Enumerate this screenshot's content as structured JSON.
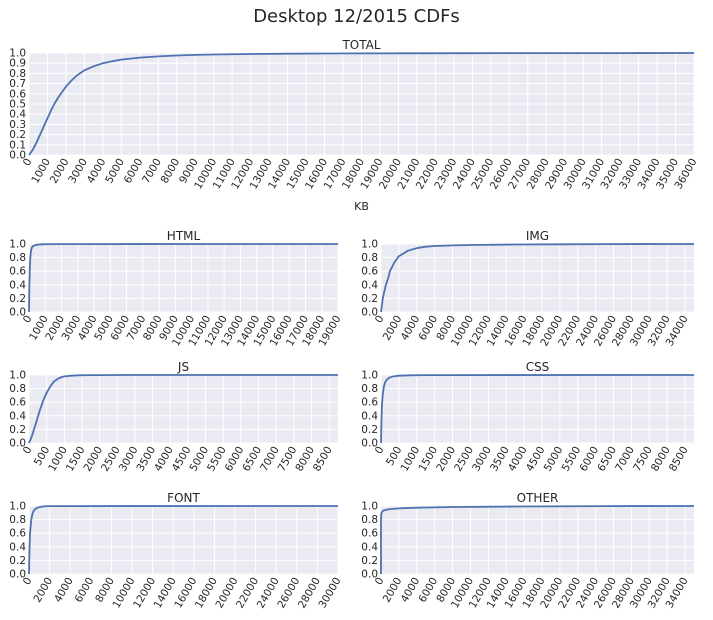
{
  "chart_data": {
    "title": "Desktop 12/2015 CDFs",
    "plots": [
      {
        "type": "line",
        "title": "TOTAL",
        "xlabel": "KB",
        "ylabel": "",
        "xlim": [
          0,
          36000
        ],
        "ylim": [
          0,
          1.0
        ],
        "xticks": [
          0,
          1000,
          2000,
          3000,
          4000,
          5000,
          6000,
          7000,
          8000,
          9000,
          10000,
          11000,
          12000,
          13000,
          14000,
          15000,
          16000,
          17000,
          18000,
          19000,
          20000,
          21000,
          22000,
          23000,
          24000,
          25000,
          26000,
          27000,
          28000,
          29000,
          30000,
          31000,
          32000,
          33000,
          34000,
          35000,
          36000
        ],
        "yticks": [
          0.0,
          0.1,
          0.2,
          0.3,
          0.4,
          0.5,
          0.6,
          0.7,
          0.8,
          0.9,
          1.0
        ],
        "grid": true,
        "x": [
          0,
          200,
          400,
          600,
          800,
          1000,
          1200,
          1400,
          1600,
          1800,
          2000,
          2300,
          2600,
          3000,
          3500,
          4000,
          4500,
          5000,
          6000,
          7000,
          8000,
          9000,
          10000,
          12000,
          14000,
          16000,
          18000,
          20000,
          24000,
          28000,
          32000,
          36000
        ],
        "y": [
          0.0,
          0.05,
          0.12,
          0.2,
          0.28,
          0.36,
          0.44,
          0.51,
          0.57,
          0.62,
          0.67,
          0.73,
          0.78,
          0.83,
          0.87,
          0.9,
          0.92,
          0.935,
          0.955,
          0.967,
          0.975,
          0.981,
          0.985,
          0.99,
          0.993,
          0.995,
          0.996,
          0.997,
          0.998,
          0.999,
          0.9995,
          1.0
        ]
      },
      {
        "type": "line",
        "title": "HTML",
        "xlabel": "",
        "ylabel": "",
        "xlim": [
          0,
          19000
        ],
        "ylim": [
          0,
          1.0
        ],
        "xticks": [
          0,
          1000,
          2000,
          3000,
          4000,
          5000,
          6000,
          7000,
          8000,
          9000,
          10000,
          11000,
          12000,
          13000,
          14000,
          15000,
          16000,
          17000,
          18000,
          19000
        ],
        "yticks": [
          0.0,
          0.2,
          0.4,
          0.6,
          0.8,
          1.0
        ],
        "grid": true,
        "x": [
          0,
          20,
          50,
          80,
          120,
          180,
          250,
          350,
          500,
          800,
          1500,
          3000,
          19000
        ],
        "y": [
          0.0,
          0.35,
          0.65,
          0.8,
          0.9,
          0.95,
          0.97,
          0.98,
          0.99,
          0.995,
          0.998,
          0.999,
          1.0
        ]
      },
      {
        "type": "line",
        "title": "IMG",
        "xlabel": "",
        "ylabel": "",
        "xlim": [
          0,
          35000
        ],
        "ylim": [
          0,
          1.0
        ],
        "xticks": [
          0,
          2000,
          4000,
          6000,
          8000,
          10000,
          12000,
          14000,
          16000,
          18000,
          20000,
          22000,
          24000,
          26000,
          28000,
          30000,
          32000,
          34000
        ],
        "yticks": [
          0.0,
          0.2,
          0.4,
          0.6,
          0.8,
          1.0
        ],
        "grid": true,
        "x": [
          0,
          200,
          500,
          800,
          1000,
          1500,
          2000,
          2500,
          3000,
          4000,
          5000,
          6000,
          8000,
          10000,
          15000,
          20000,
          25000,
          35000
        ],
        "y": [
          0.0,
          0.2,
          0.38,
          0.5,
          0.6,
          0.73,
          0.82,
          0.86,
          0.9,
          0.94,
          0.96,
          0.97,
          0.98,
          0.986,
          0.993,
          0.996,
          0.998,
          1.0
        ]
      },
      {
        "type": "line",
        "title": "JS",
        "xlabel": "",
        "ylabel": "",
        "xlim": [
          0,
          8750
        ],
        "ylim": [
          0,
          1.0
        ],
        "xticks": [
          0,
          500,
          1000,
          1500,
          2000,
          2500,
          3000,
          3500,
          4000,
          4500,
          5000,
          5500,
          6000,
          6500,
          7000,
          7500,
          8000,
          8500
        ],
        "yticks": [
          0.0,
          0.2,
          0.4,
          0.6,
          0.8,
          1.0
        ],
        "grid": true,
        "x": [
          0,
          50,
          100,
          200,
          300,
          400,
          500,
          600,
          700,
          800,
          900,
          1000,
          1200,
          1400,
          1700,
          2000,
          3000,
          4000,
          8750
        ],
        "y": [
          0.0,
          0.06,
          0.13,
          0.3,
          0.47,
          0.62,
          0.74,
          0.83,
          0.9,
          0.94,
          0.965,
          0.98,
          0.99,
          0.995,
          0.998,
          0.999,
          0.9995,
          1.0,
          1.0
        ]
      },
      {
        "type": "line",
        "title": "CSS",
        "xlabel": "",
        "ylabel": "",
        "xlim": [
          0,
          8750
        ],
        "ylim": [
          0,
          1.0
        ],
        "xticks": [
          0,
          500,
          1000,
          1500,
          2000,
          2500,
          3000,
          3500,
          4000,
          4500,
          5000,
          5500,
          6000,
          6500,
          7000,
          7500,
          8000,
          8500
        ],
        "yticks": [
          0.0,
          0.2,
          0.4,
          0.6,
          0.8,
          1.0
        ],
        "grid": true,
        "x": [
          0,
          10,
          25,
          50,
          80,
          120,
          180,
          250,
          350,
          500,
          800,
          1200,
          2000,
          8750
        ],
        "y": [
          0.0,
          0.3,
          0.55,
          0.72,
          0.83,
          0.9,
          0.94,
          0.965,
          0.98,
          0.99,
          0.995,
          0.998,
          0.999,
          1.0
        ]
      },
      {
        "type": "line",
        "title": "FONT",
        "xlabel": "",
        "ylabel": "",
        "xlim": [
          0,
          30000
        ],
        "ylim": [
          0,
          1.0
        ],
        "xticks": [
          0,
          2000,
          4000,
          6000,
          8000,
          10000,
          12000,
          14000,
          16000,
          18000,
          20000,
          22000,
          24000,
          26000,
          28000,
          30000
        ],
        "yticks": [
          0.0,
          0.2,
          0.4,
          0.6,
          0.8,
          1.0
        ],
        "grid": true,
        "x": [
          0,
          50,
          100,
          200,
          300,
          400,
          500,
          700,
          900,
          1200,
          1500,
          2000,
          3000,
          30000
        ],
        "y": [
          0.0,
          0.38,
          0.6,
          0.78,
          0.86,
          0.91,
          0.94,
          0.965,
          0.98,
          0.99,
          0.995,
          0.998,
          0.999,
          1.0
        ]
      },
      {
        "type": "line",
        "title": "OTHER",
        "xlabel": "",
        "ylabel": "",
        "xlim": [
          0,
          35000
        ],
        "ylim": [
          0,
          1.0
        ],
        "xticks": [
          0,
          2000,
          4000,
          6000,
          8000,
          10000,
          12000,
          14000,
          16000,
          18000,
          20000,
          22000,
          24000,
          26000,
          28000,
          30000,
          32000,
          34000
        ],
        "yticks": [
          0.0,
          0.2,
          0.4,
          0.6,
          0.8,
          1.0
        ],
        "grid": true,
        "x": [
          0,
          5,
          20,
          60,
          150,
          400,
          1000,
          2000,
          4000,
          8000,
          15000,
          25000,
          35000
        ],
        "y": [
          0.0,
          0.8,
          0.87,
          0.9,
          0.92,
          0.94,
          0.955,
          0.965,
          0.975,
          0.985,
          0.993,
          0.998,
          1.0
        ]
      }
    ]
  }
}
